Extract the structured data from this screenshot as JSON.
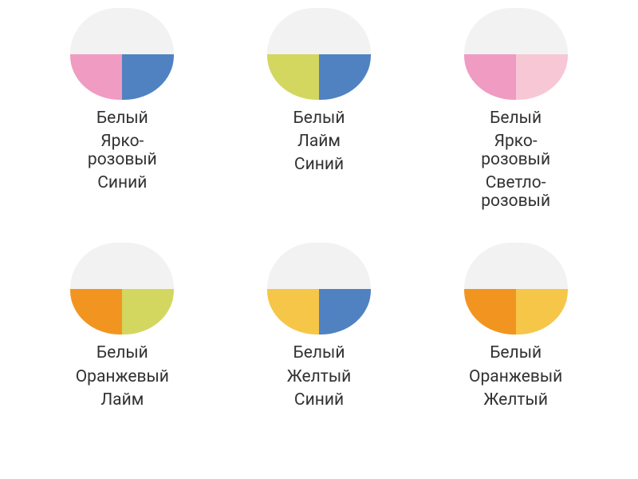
{
  "layout": {
    "background_color": "#ffffff",
    "columns": 3,
    "font_family": "Arial, sans-serif",
    "label_fontsize": 21,
    "label_color": "#323232",
    "blob_width": 130,
    "blob_height": 115
  },
  "swatches": [
    {
      "id": "white-brightpink-blue",
      "colors": {
        "top": "#f2f2f2",
        "bottom_left": "#f09bc2",
        "bottom_right": "#5082c2"
      },
      "labels": [
        "Белый",
        "Ярко-\nрозовый",
        "Синий"
      ]
    },
    {
      "id": "white-lime-blue",
      "colors": {
        "top": "#f2f2f2",
        "bottom_left": "#d3d760",
        "bottom_right": "#5082c2"
      },
      "labels": [
        "Белый",
        "Лайм",
        "Синий"
      ]
    },
    {
      "id": "white-brightpink-lightpink",
      "colors": {
        "top": "#f2f2f2",
        "bottom_left": "#f09bc2",
        "bottom_right": "#f8c7d5"
      },
      "labels": [
        "Белый",
        "Ярко-\nрозовый",
        "Светло-\nрозовый"
      ]
    },
    {
      "id": "white-orange-lime",
      "colors": {
        "top": "#f2f2f2",
        "bottom_left": "#f29520",
        "bottom_right": "#d3d760"
      },
      "labels": [
        "Белый",
        "Оранжевый",
        "Лайм"
      ]
    },
    {
      "id": "white-yellow-blue",
      "colors": {
        "top": "#f2f2f2",
        "bottom_left": "#f6c648",
        "bottom_right": "#5082c2"
      },
      "labels": [
        "Белый",
        "Желтый",
        "Синий"
      ]
    },
    {
      "id": "white-orange-yellow",
      "colors": {
        "top": "#f2f2f2",
        "bottom_left": "#f29520",
        "bottom_right": "#f6c648"
      },
      "labels": [
        "Белый",
        "Оранжевый",
        "Желтый"
      ]
    }
  ]
}
